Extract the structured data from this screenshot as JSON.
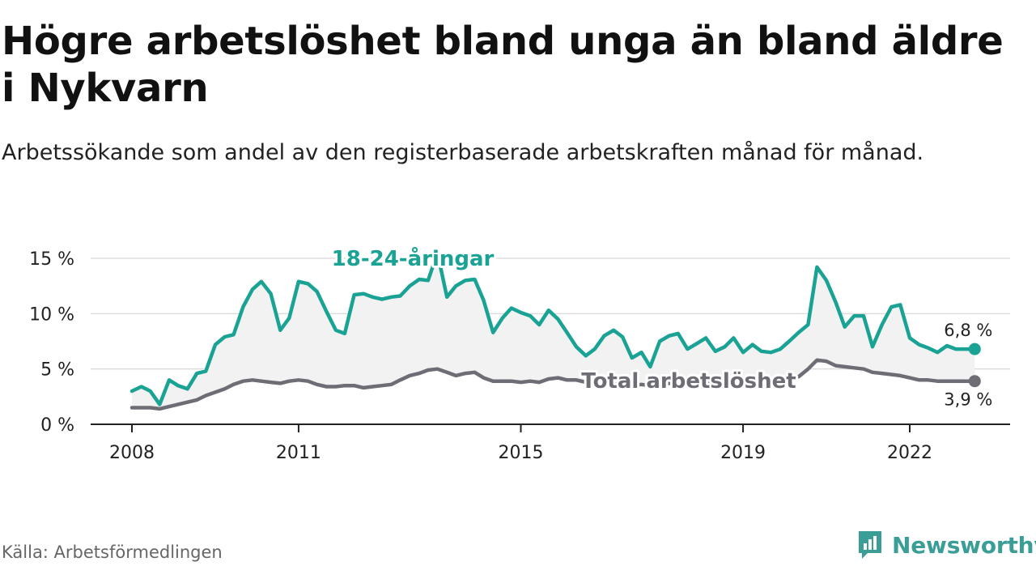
{
  "title": "Högre arbetslöshet bland unga än bland äldre i Nykvarn",
  "subtitle": "Arbetssökande som andel av den registerbaserade arbetskraften månad för månad.",
  "source": "Källa: Arbetsförmedlingen",
  "brand": {
    "name": "Newsworthy",
    "icon": "newsworthy-logo-icon"
  },
  "colors": {
    "youth": "#1aa394",
    "total": "#6e6c74",
    "axis": "#222222",
    "grid": "#dddddd",
    "band": "#f2f2f2"
  },
  "chart_data": {
    "type": "line",
    "xlim": [
      2008.0,
      2023.7
    ],
    "ylim": [
      0,
      15
    ],
    "x_ticks": [
      {
        "value": 2008,
        "label": "2008"
      },
      {
        "value": 2011,
        "label": "2011"
      },
      {
        "value": 2015,
        "label": "2015"
      },
      {
        "value": 2019,
        "label": "2019"
      },
      {
        "value": 2022,
        "label": "2022"
      }
    ],
    "y_ticks": [
      {
        "value": 0,
        "label": "0 %"
      },
      {
        "value": 5,
        "label": "5 %"
      },
      {
        "value": 10,
        "label": "10 %"
      },
      {
        "value": 15,
        "label": "15 %"
      }
    ],
    "series": [
      {
        "name": "18-24-åringar",
        "label": "18-24-åringar",
        "end_label": "6,8 %",
        "color": "#1aa394",
        "x": [
          2008.0,
          2008.17,
          2008.33,
          2008.5,
          2008.67,
          2008.83,
          2009.0,
          2009.17,
          2009.33,
          2009.5,
          2009.67,
          2009.83,
          2010.0,
          2010.17,
          2010.33,
          2010.5,
          2010.67,
          2010.83,
          2011.0,
          2011.17,
          2011.33,
          2011.5,
          2011.67,
          2011.83,
          2012.0,
          2012.17,
          2012.33,
          2012.5,
          2012.67,
          2012.83,
          2013.0,
          2013.17,
          2013.33,
          2013.5,
          2013.67,
          2013.83,
          2014.0,
          2014.17,
          2014.33,
          2014.5,
          2014.67,
          2014.83,
          2015.0,
          2015.17,
          2015.33,
          2015.5,
          2015.67,
          2015.83,
          2016.0,
          2016.17,
          2016.33,
          2016.5,
          2016.67,
          2016.83,
          2017.0,
          2017.17,
          2017.33,
          2017.5,
          2017.67,
          2017.83,
          2018.0,
          2018.17,
          2018.33,
          2018.5,
          2018.67,
          2018.83,
          2019.0,
          2019.17,
          2019.33,
          2019.5,
          2019.67,
          2019.83,
          2020.0,
          2020.17,
          2020.33,
          2020.5,
          2020.67,
          2020.83,
          2021.0,
          2021.17,
          2021.33,
          2021.5,
          2021.67,
          2021.83,
          2022.0,
          2022.17,
          2022.33,
          2022.5,
          2022.67,
          2022.83,
          2023.0,
          2023.17
        ],
        "values": [
          3.0,
          3.4,
          3.0,
          1.8,
          4.0,
          3.5,
          3.2,
          4.6,
          4.8,
          7.2,
          7.9,
          8.1,
          10.6,
          12.2,
          12.9,
          11.8,
          8.5,
          9.6,
          12.9,
          12.7,
          12.0,
          10.2,
          8.5,
          8.2,
          11.7,
          11.8,
          11.5,
          11.3,
          11.5,
          11.6,
          12.5,
          13.1,
          13.0,
          15.5,
          11.5,
          12.5,
          13.0,
          13.1,
          11.2,
          8.3,
          9.6,
          10.5,
          10.1,
          9.8,
          9.0,
          10.3,
          9.5,
          8.3,
          7.0,
          6.2,
          6.8,
          8.0,
          8.5,
          7.9,
          6.0,
          6.5,
          5.2,
          7.5,
          8.0,
          8.2,
          6.8,
          7.3,
          7.8,
          6.6,
          7.0,
          7.8,
          6.5,
          7.2,
          6.6,
          6.5,
          6.8,
          7.5,
          8.3,
          9.0,
          14.2,
          13.0,
          11.0,
          8.8,
          9.8,
          9.8,
          7.0,
          9.0,
          10.6,
          10.8,
          7.8,
          7.2,
          6.9,
          6.5,
          7.1,
          6.8,
          6.8,
          6.8
        ]
      },
      {
        "name": "Total arbetslöshet",
        "label": "Total arbetslöshet",
        "end_label": "3,9 %",
        "color": "#6e6c74",
        "x": [
          2008.0,
          2008.17,
          2008.33,
          2008.5,
          2008.67,
          2008.83,
          2009.0,
          2009.17,
          2009.33,
          2009.5,
          2009.67,
          2009.83,
          2010.0,
          2010.17,
          2010.33,
          2010.5,
          2010.67,
          2010.83,
          2011.0,
          2011.17,
          2011.33,
          2011.5,
          2011.67,
          2011.83,
          2012.0,
          2012.17,
          2012.33,
          2012.5,
          2012.67,
          2012.83,
          2013.0,
          2013.17,
          2013.33,
          2013.5,
          2013.67,
          2013.83,
          2014.0,
          2014.17,
          2014.33,
          2014.5,
          2014.67,
          2014.83,
          2015.0,
          2015.17,
          2015.33,
          2015.5,
          2015.67,
          2015.83,
          2016.0,
          2016.17,
          2016.33,
          2016.5,
          2016.67,
          2016.83,
          2017.0,
          2017.17,
          2017.33,
          2017.5,
          2017.67,
          2017.83,
          2018.0,
          2018.17,
          2018.33,
          2018.5,
          2018.67,
          2018.83,
          2019.0,
          2019.17,
          2019.33,
          2019.5,
          2019.67,
          2019.83,
          2020.0,
          2020.17,
          2020.33,
          2020.5,
          2020.67,
          2020.83,
          2021.0,
          2021.17,
          2021.33,
          2021.5,
          2021.67,
          2021.83,
          2022.0,
          2022.17,
          2022.33,
          2022.5,
          2022.67,
          2022.83,
          2023.0,
          2023.17
        ],
        "values": [
          1.5,
          1.5,
          1.5,
          1.4,
          1.6,
          1.8,
          2.0,
          2.2,
          2.6,
          2.9,
          3.2,
          3.6,
          3.9,
          4.0,
          3.9,
          3.8,
          3.7,
          3.9,
          4.0,
          3.9,
          3.6,
          3.4,
          3.4,
          3.5,
          3.5,
          3.3,
          3.4,
          3.5,
          3.6,
          4.0,
          4.4,
          4.6,
          4.9,
          5.0,
          4.7,
          4.4,
          4.6,
          4.7,
          4.2,
          3.9,
          3.9,
          3.9,
          3.8,
          3.9,
          3.8,
          4.1,
          4.2,
          4.0,
          4.0,
          3.8,
          3.7,
          3.6,
          3.6,
          3.7,
          3.5,
          3.6,
          3.5,
          3.6,
          3.7,
          3.7,
          3.6,
          3.6,
          3.7,
          3.6,
          3.7,
          3.8,
          3.8,
          3.9,
          4.0,
          4.1,
          4.2,
          4.2,
          4.3,
          5.0,
          5.8,
          5.7,
          5.3,
          5.2,
          5.1,
          5.0,
          4.7,
          4.6,
          4.5,
          4.4,
          4.2,
          4.0,
          4.0,
          3.9,
          3.9,
          3.9,
          3.9,
          3.9
        ]
      }
    ]
  }
}
